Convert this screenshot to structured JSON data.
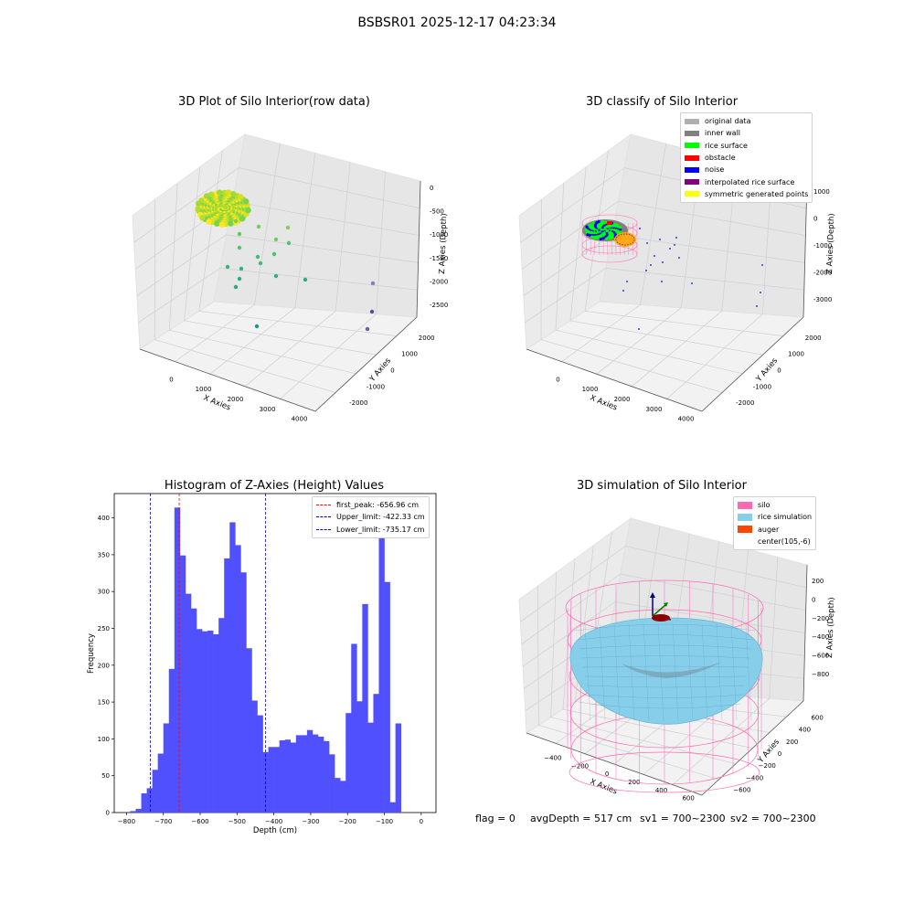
{
  "figure": {
    "suptitle": "BSBSR01 2025-12-17 04:23:34",
    "footer": {
      "flag": "flag = 0",
      "avg_depth": "avgDepth = 517 cm",
      "sv1": "sv1 = 700~2300",
      "sv2": "sv2 = 700~2300"
    }
  },
  "colors": {
    "histogram_bar": "#5050ff",
    "first_peak_line": "#ff0000",
    "limit_lines": "#0000cc",
    "silo_wire": "#ff69b4",
    "rice_simulation": "#87ceeb",
    "auger": "#ff4500"
  },
  "chart_data": [
    {
      "type": "scatter",
      "title": "3D Plot of Silo Interior(row data)",
      "xlabel": "X Axies",
      "ylabel": "Y Axies",
      "zlabel": "Z Axies (Depth)",
      "xticks": [
        "0",
        "1000",
        "2000",
        "3000",
        "4000"
      ],
      "yticks": [
        "-2000",
        "-1000",
        "0",
        "1000",
        "2000"
      ],
      "zticks": [
        "0",
        "-500",
        "-1000",
        "-1500",
        "-2000",
        "-2500"
      ],
      "colormap": "viridis"
    },
    {
      "type": "scatter",
      "title": "3D classify of Silo Interior",
      "xlabel": "X Axies",
      "ylabel": "Y Axies",
      "zlabel": "Z Axies (Depth)",
      "xticks": [
        "0",
        "1000",
        "2000",
        "3000",
        "4000"
      ],
      "yticks": [
        "-2000",
        "-1000",
        "0",
        "1000",
        "2000"
      ],
      "zticks": [
        "1000",
        "0",
        "-1000",
        "-2000",
        "-3000"
      ],
      "legend": [
        {
          "label": "original data",
          "color": "#b0b0b0"
        },
        {
          "label": "inner wall",
          "color": "#808080"
        },
        {
          "label": "rice surface",
          "color": "#00ff00"
        },
        {
          "label": "obstacle",
          "color": "#ff0000"
        },
        {
          "label": "noise",
          "color": "#0000ff"
        },
        {
          "label": "interpolated rice surface",
          "color": "#800080"
        },
        {
          "label": "symmetric generated points",
          "color": "#ffff00"
        }
      ]
    },
    {
      "type": "bar",
      "title": "Histogram of Z-Axies (Height) Values",
      "xlabel": "Depth (cm)",
      "ylabel": "Frequency",
      "xlim": [
        -800,
        0
      ],
      "ylim": [
        0,
        433
      ],
      "xticks": [
        "−800",
        "−700",
        "−600",
        "−500",
        "−400",
        "−300",
        "−200",
        "−100",
        "0"
      ],
      "yticks": [
        "0",
        "50",
        "100",
        "150",
        "200",
        "250",
        "300",
        "350",
        "400"
      ],
      "bin_start": -790,
      "bin_width": 15,
      "values": [
        2,
        5,
        26,
        33,
        58,
        80,
        121,
        195,
        414,
        349,
        297,
        277,
        249,
        246,
        247,
        242,
        264,
        345,
        394,
        363,
        326,
        223,
        152,
        132,
        82,
        89,
        89,
        98,
        99,
        95,
        105,
        105,
        112,
        106,
        103,
        97,
        79,
        47,
        43,
        135,
        229,
        151,
        283,
        122,
        161,
        391,
        313,
        14,
        121
      ],
      "vlines": [
        {
          "label": "first_peak: -656.96 cm",
          "x": -656.96,
          "color": "#ff0000"
        },
        {
          "label": "Upper_limit: -422.33 cm",
          "x": -422.33,
          "color": "#0000cc"
        },
        {
          "label": "Lower_limit: -735.17 cm",
          "x": -735.17,
          "color": "#0000cc"
        }
      ]
    },
    {
      "type": "scatter",
      "title": "3D simulation of Silo Interior",
      "xlabel": "X Axies",
      "ylabel": "Y Axies",
      "zlabel": "Z Axies (Depth)",
      "xticks": [
        "−400",
        "−200",
        "0",
        "200",
        "400",
        "600"
      ],
      "yticks": [
        "−600",
        "−400",
        "−200",
        "0",
        "200",
        "400",
        "600"
      ],
      "zticks": [
        "200",
        "0",
        "−200",
        "−400",
        "−600",
        "−800"
      ],
      "legend": [
        {
          "label": "silo",
          "color": "#ff69b4"
        },
        {
          "label": "rice simulation",
          "color": "#87ceeb"
        },
        {
          "label": "auger",
          "color": "#ff4500"
        },
        {
          "label": "center(105,-6)",
          "color": ""
        }
      ]
    }
  ]
}
